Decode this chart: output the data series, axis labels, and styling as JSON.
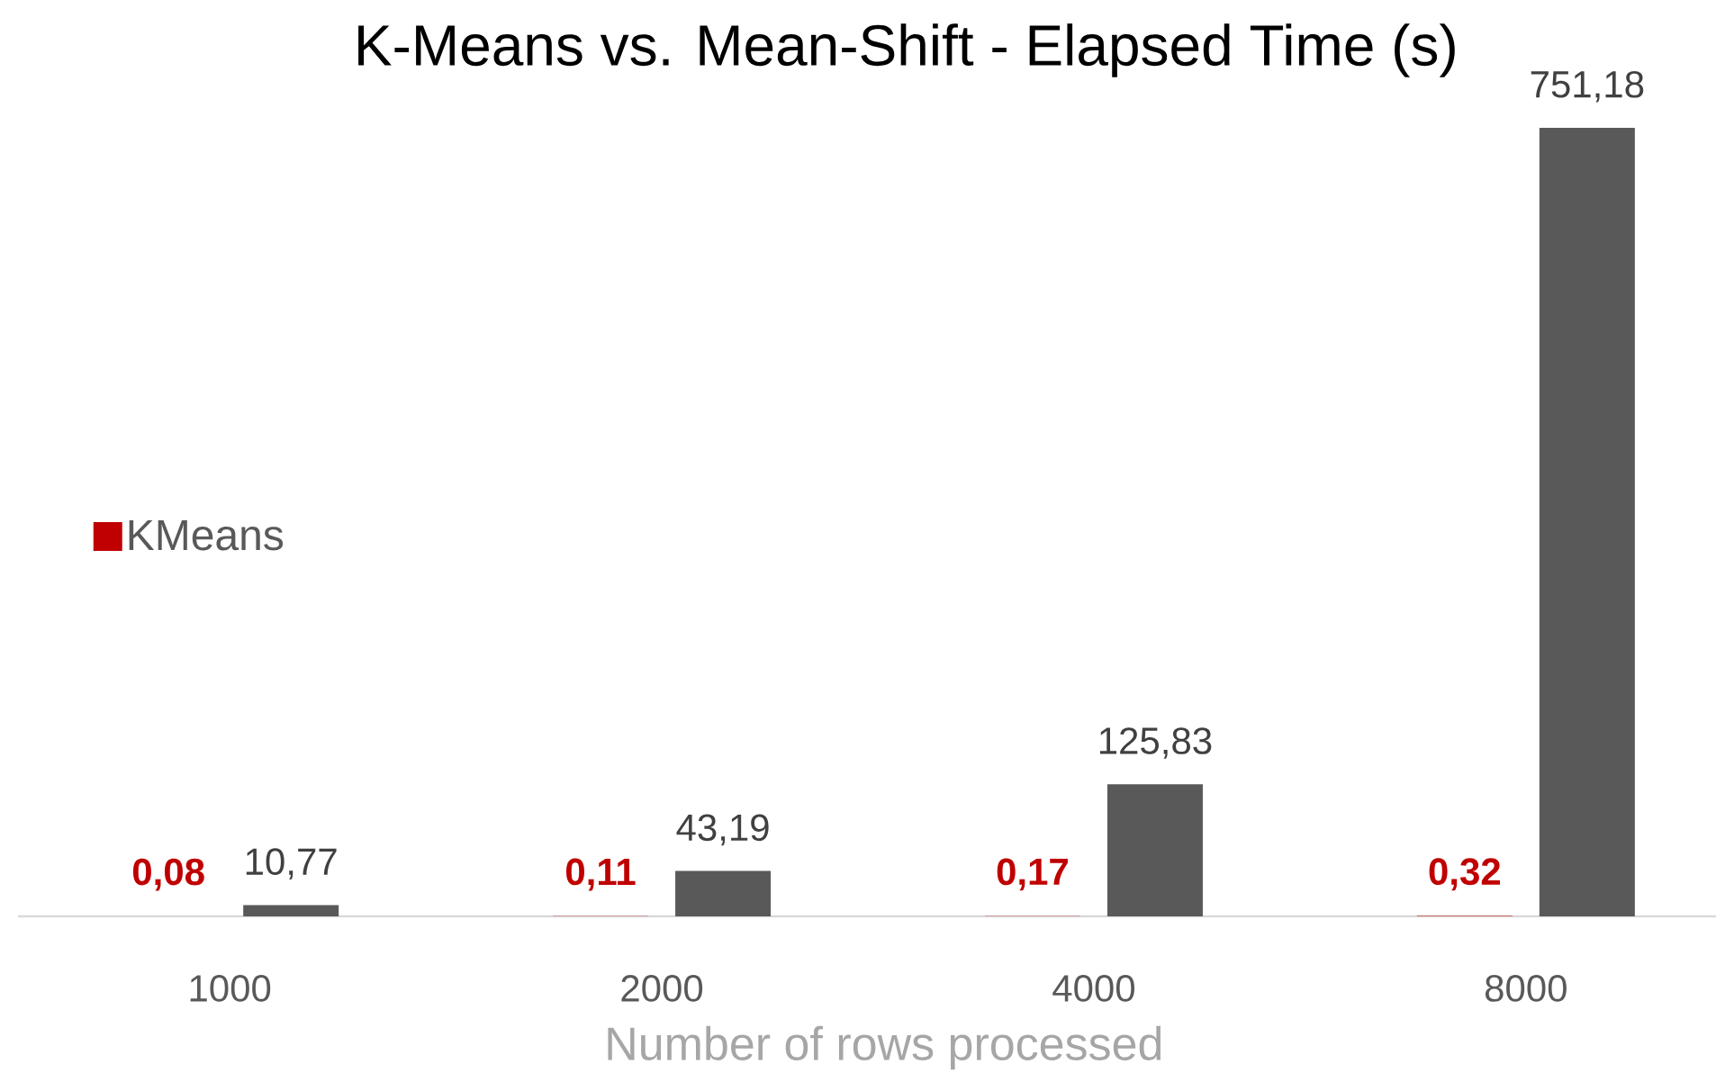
{
  "chart_data": {
    "type": "bar",
    "title": "K-Means vs. Mean-Shift - Elapsed Time (s)",
    "xlabel": "Number of rows processed",
    "categories": [
      "1000",
      "2000",
      "4000",
      "8000"
    ],
    "series": [
      {
        "name": "KMeans",
        "color": "#c00000",
        "values": [
          0.08,
          0.11,
          0.17,
          0.32
        ],
        "value_labels": [
          "0,08",
          "0,11",
          "0,17",
          "0,32"
        ]
      },
      {
        "color": "#595959",
        "values": [
          10.77,
          43.19,
          125.83,
          751.18
        ],
        "value_labels": [
          "10,77",
          "43,19",
          "125,83",
          "751,18"
        ]
      }
    ],
    "legend": "left"
  }
}
